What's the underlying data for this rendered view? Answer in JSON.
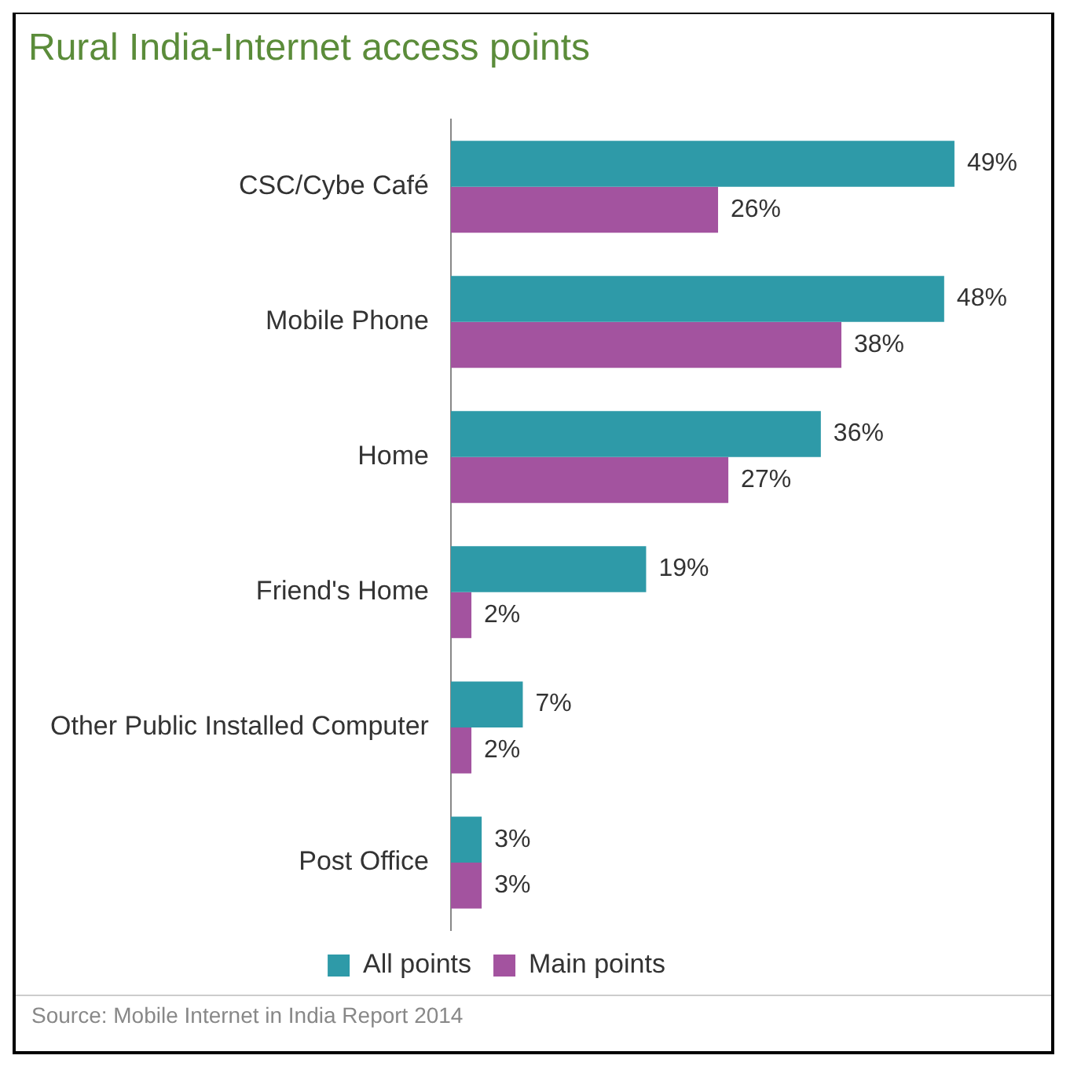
{
  "chart_data": {
    "type": "bar",
    "orientation": "horizontal",
    "title": "Rural India-Internet access points",
    "categories": [
      "CSC/Cybe Café",
      "Mobile Phone",
      "Home",
      "Friend's Home",
      "Other Public Installed Computer",
      "Post Office"
    ],
    "series": [
      {
        "name": "All points",
        "color": "#2e9aa8",
        "values": [
          49,
          48,
          36,
          19,
          7,
          3
        ],
        "value_labels": [
          "49%",
          "48%",
          "36%",
          "19%",
          "7%",
          "3%"
        ]
      },
      {
        "name": "Main points",
        "color": "#a3539f",
        "values": [
          26,
          38,
          27,
          2,
          2,
          3
        ],
        "value_labels": [
          "26%",
          "38%",
          "27%",
          "2%",
          "2%",
          "3%"
        ]
      }
    ],
    "legend": "bottom",
    "annotations": [
      "Source: Mobile Internet in India Report 2014"
    ]
  }
}
